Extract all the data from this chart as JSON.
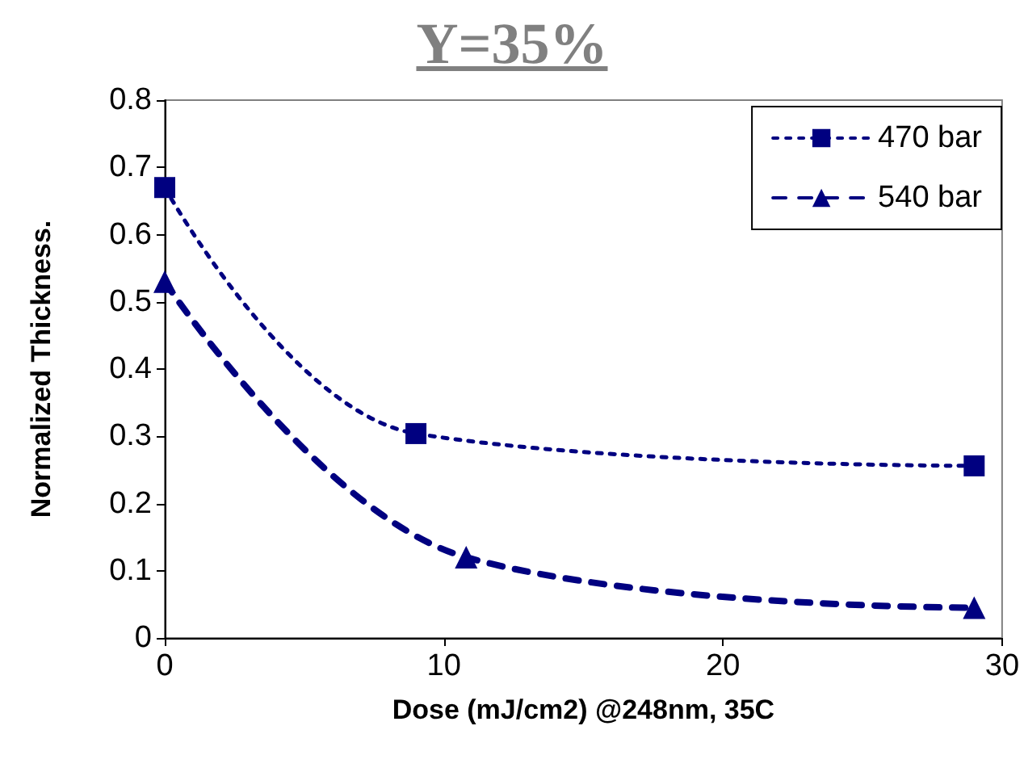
{
  "chart_data": {
    "type": "line",
    "title": "Y=35%",
    "xlabel": "Dose (mJ/cm2) @248nm, 35C",
    "ylabel": "Normalized Thickness.",
    "series": [
      {
        "name": "470 bar",
        "color": "#000080",
        "x": [
          0,
          9,
          29
        ],
        "values": [
          0.67,
          0.304,
          0.256
        ],
        "marker": "square",
        "line_style": "dotted"
      },
      {
        "name": "540 bar",
        "color": "#000080",
        "x": [
          0,
          10.8,
          29
        ],
        "values": [
          0.53,
          0.12,
          0.045
        ],
        "marker": "triangle",
        "line_style": "dashed"
      }
    ],
    "xlim": [
      0,
      30
    ],
    "xticks": [
      0,
      10,
      20,
      30
    ],
    "ylim": [
      0,
      0.8
    ],
    "yticks": [
      0,
      0.1,
      0.2,
      0.3,
      0.4,
      0.5,
      0.6,
      0.7,
      0.8
    ],
    "grid": false,
    "legend": "top right"
  }
}
